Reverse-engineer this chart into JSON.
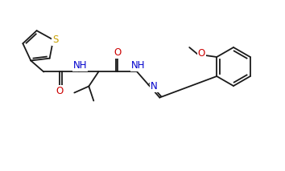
{
  "bg_color": "#ffffff",
  "line_color": "#1a1a1a",
  "text_color": "#1a1a1a",
  "atom_colors": {
    "S": "#c8a000",
    "O": "#cc0000",
    "N": "#0000cc",
    "C": "#1a1a1a"
  },
  "figsize": [
    3.54,
    2.13
  ],
  "dpi": 100
}
